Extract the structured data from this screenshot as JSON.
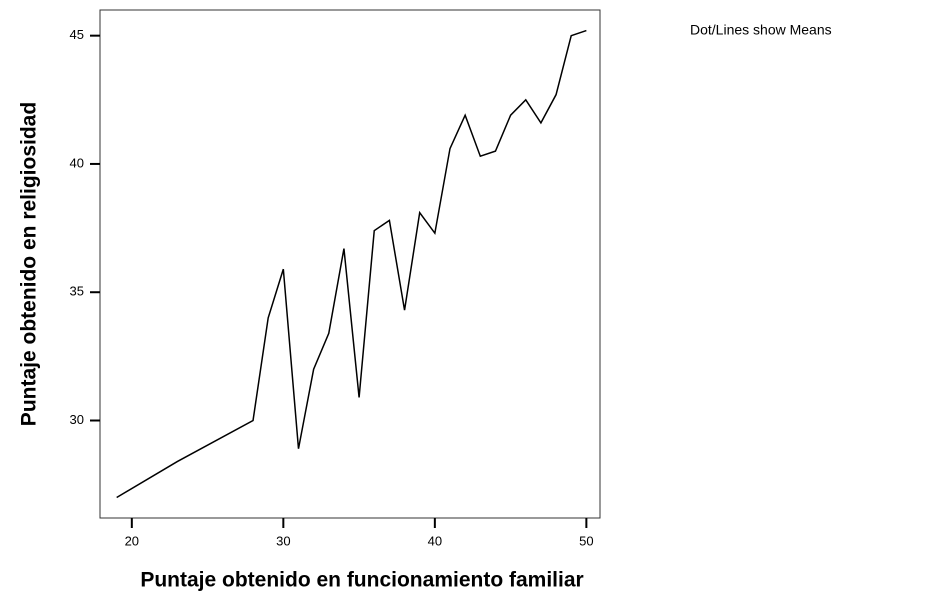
{
  "chart_data": {
    "type": "line",
    "annotation": "Dot/Lines show Means",
    "x_label": "Puntaje obtenido en funcionamiento familiar",
    "y_label": "Puntaje obtenido en religiosidad",
    "x": [
      19,
      23,
      28,
      29,
      30,
      31,
      32,
      33,
      34,
      35,
      36,
      37,
      38,
      39,
      40,
      41,
      42,
      43,
      44,
      45,
      46,
      47,
      48,
      49,
      50
    ],
    "values": [
      27.0,
      28.4,
      30.0,
      34.0,
      35.9,
      28.9,
      32.0,
      33.4,
      36.7,
      30.9,
      37.4,
      37.8,
      34.3,
      38.1,
      37.3,
      40.6,
      41.9,
      40.3,
      40.5,
      41.9,
      42.5,
      41.6,
      42.7,
      45.0,
      45.2
    ],
    "color": "#000000",
    "xlim": [
      17.9,
      50.9
    ],
    "xticks": [
      20,
      30,
      40,
      50
    ],
    "ylim": [
      26.2,
      46.0
    ],
    "yticks": [
      30,
      35,
      40,
      45
    ]
  }
}
